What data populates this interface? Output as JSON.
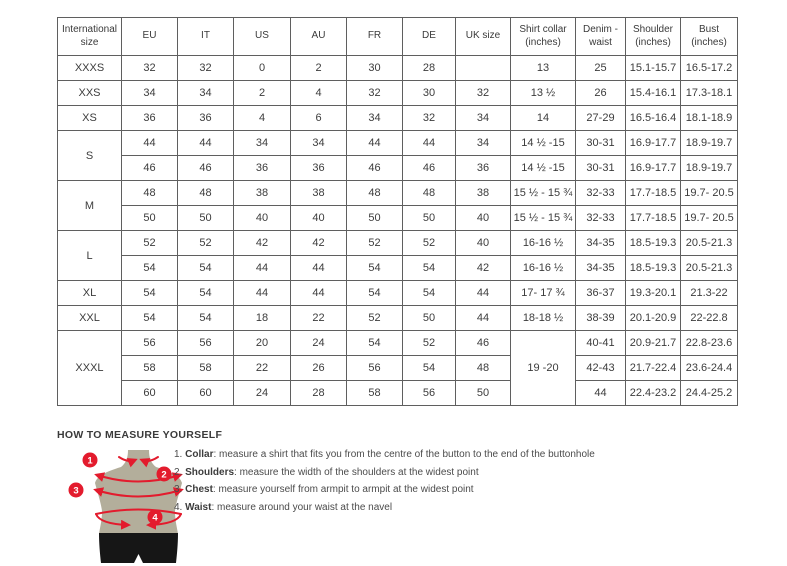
{
  "theme": {
    "red": "#e31b2d",
    "body": "#b3ae9b",
    "shorts": "#161616"
  },
  "table": {
    "headers": [
      "International size",
      "EU",
      "IT",
      "US",
      "AU",
      "FR",
      "DE",
      "UK size",
      "Shirt collar (inches)",
      "Denim - waist",
      "Shoulder (inches)",
      "Bust (inches)"
    ],
    "rows": [
      [
        "XXXS",
        "32",
        "32",
        "0",
        "2",
        "30",
        "28",
        "",
        "13",
        "25",
        "15.1-15.7",
        "16.5-17.2"
      ],
      [
        "XXS",
        "34",
        "34",
        "2",
        "4",
        "32",
        "30",
        "32",
        "13 ½",
        "26",
        "15.4-16.1",
        "17.3-18.1"
      ],
      [
        "XS",
        "36",
        "36",
        "4",
        "6",
        "34",
        "32",
        "34",
        "14",
        "27-29",
        "16.5-16.4",
        "18.1-18.9"
      ],
      [
        {
          "text": "S",
          "rowspan": 2
        },
        "44",
        "44",
        "34",
        "34",
        "44",
        "44",
        "34",
        "14 ½ -15",
        "30-31",
        "16.9-17.7",
        "18.9-19.7"
      ],
      [
        "46",
        "46",
        "36",
        "36",
        "46",
        "46",
        "36",
        "14 ½ -15",
        "30-31",
        "16.9-17.7",
        "18.9-19.7"
      ],
      [
        {
          "text": "M",
          "rowspan": 2
        },
        "48",
        "48",
        "38",
        "38",
        "48",
        "48",
        "38",
        "15 ½ - 15 ¾",
        "32-33",
        "17.7-18.5",
        "19.7- 20.5"
      ],
      [
        "50",
        "50",
        "40",
        "40",
        "50",
        "50",
        "40",
        "15 ½ - 15 ¾",
        "32-33",
        "17.7-18.5",
        "19.7- 20.5"
      ],
      [
        {
          "text": "L",
          "rowspan": 2
        },
        "52",
        "52",
        "42",
        "42",
        "52",
        "52",
        "40",
        "16-16 ½",
        "34-35",
        "18.5-19.3",
        "20.5-21.3"
      ],
      [
        "54",
        "54",
        "44",
        "44",
        "54",
        "54",
        "42",
        "16-16 ½",
        "34-35",
        "18.5-19.3",
        "20.5-21.3"
      ],
      [
        "XL",
        "54",
        "54",
        "44",
        "44",
        "54",
        "54",
        "44",
        "17- 17 ¾",
        "36-37",
        "19.3-20.1",
        "21.3-22"
      ],
      [
        "XXL",
        "54",
        "54",
        "18",
        "22",
        "52",
        "50",
        "44",
        "18-18 ½",
        "38-39",
        "20.1-20.9",
        "22-22.8"
      ],
      [
        {
          "text": "XXXL",
          "rowspan": 3
        },
        "56",
        "56",
        "20",
        "24",
        "54",
        "52",
        "46",
        {
          "text": "19 -20",
          "rowspan": 3
        },
        "40-41",
        "20.9-21.7",
        "22.8-23.6"
      ],
      [
        "58",
        "58",
        "22",
        "26",
        "56",
        "54",
        "48",
        "42-43",
        "21.7-22.4",
        "23.6-24.4"
      ],
      [
        "60",
        "60",
        "24",
        "28",
        "58",
        "56",
        "50",
        "44",
        "22.4-23.2",
        "24.4-25.2"
      ]
    ]
  },
  "measure": {
    "title": "HOW TO MEASURE YOURSELF",
    "badges": [
      "1",
      "2",
      "3",
      "4"
    ],
    "items": [
      {
        "num": "1.",
        "label": "Collar",
        "text": ": measure a shirt that fits you from the centre of the button to the end of the buttonhole"
      },
      {
        "num": "2.",
        "label": "Shoulders",
        "text": ": measure the width of the shoulders at the widest point"
      },
      {
        "num": "3.",
        "label": "Chest",
        "text": ": measure yourself from armpit to armpit at the widest point"
      },
      {
        "num": "4.",
        "label": "Waist",
        "text": ": measure around your waist at the navel"
      }
    ]
  }
}
